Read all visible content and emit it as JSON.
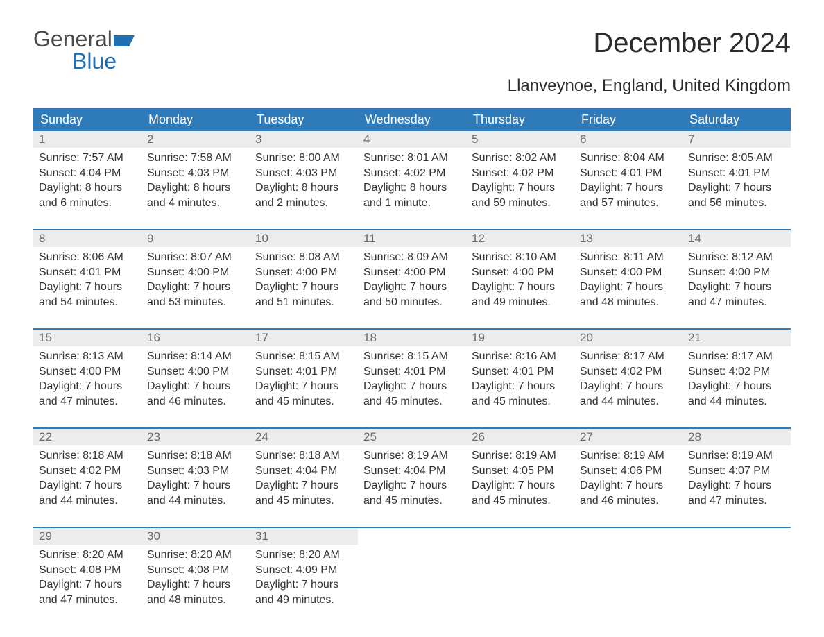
{
  "logo": {
    "text1": "General",
    "text2": "Blue",
    "flag_color": "#1f6fb2"
  },
  "title": "December 2024",
  "subtitle": "Llanveynoe, England, United Kingdom",
  "colors": {
    "header_bg": "#2f7ab8",
    "header_text": "#ffffff",
    "daynum_bg": "#ececec",
    "daynum_text": "#6a6a6a",
    "body_text": "#333333",
    "row_border": "#2f7ab8",
    "page_bg": "#ffffff"
  },
  "dayHeaders": [
    "Sunday",
    "Monday",
    "Tuesday",
    "Wednesday",
    "Thursday",
    "Friday",
    "Saturday"
  ],
  "weeks": [
    [
      {
        "n": "1",
        "sunrise": "7:57 AM",
        "sunset": "4:04 PM",
        "daylight": "8 hours and 6 minutes."
      },
      {
        "n": "2",
        "sunrise": "7:58 AM",
        "sunset": "4:03 PM",
        "daylight": "8 hours and 4 minutes."
      },
      {
        "n": "3",
        "sunrise": "8:00 AM",
        "sunset": "4:03 PM",
        "daylight": "8 hours and 2 minutes."
      },
      {
        "n": "4",
        "sunrise": "8:01 AM",
        "sunset": "4:02 PM",
        "daylight": "8 hours and 1 minute."
      },
      {
        "n": "5",
        "sunrise": "8:02 AM",
        "sunset": "4:02 PM",
        "daylight": "7 hours and 59 minutes."
      },
      {
        "n": "6",
        "sunrise": "8:04 AM",
        "sunset": "4:01 PM",
        "daylight": "7 hours and 57 minutes."
      },
      {
        "n": "7",
        "sunrise": "8:05 AM",
        "sunset": "4:01 PM",
        "daylight": "7 hours and 56 minutes."
      }
    ],
    [
      {
        "n": "8",
        "sunrise": "8:06 AM",
        "sunset": "4:01 PM",
        "daylight": "7 hours and 54 minutes."
      },
      {
        "n": "9",
        "sunrise": "8:07 AM",
        "sunset": "4:00 PM",
        "daylight": "7 hours and 53 minutes."
      },
      {
        "n": "10",
        "sunrise": "8:08 AM",
        "sunset": "4:00 PM",
        "daylight": "7 hours and 51 minutes."
      },
      {
        "n": "11",
        "sunrise": "8:09 AM",
        "sunset": "4:00 PM",
        "daylight": "7 hours and 50 minutes."
      },
      {
        "n": "12",
        "sunrise": "8:10 AM",
        "sunset": "4:00 PM",
        "daylight": "7 hours and 49 minutes."
      },
      {
        "n": "13",
        "sunrise": "8:11 AM",
        "sunset": "4:00 PM",
        "daylight": "7 hours and 48 minutes."
      },
      {
        "n": "14",
        "sunrise": "8:12 AM",
        "sunset": "4:00 PM",
        "daylight": "7 hours and 47 minutes."
      }
    ],
    [
      {
        "n": "15",
        "sunrise": "8:13 AM",
        "sunset": "4:00 PM",
        "daylight": "7 hours and 47 minutes."
      },
      {
        "n": "16",
        "sunrise": "8:14 AM",
        "sunset": "4:00 PM",
        "daylight": "7 hours and 46 minutes."
      },
      {
        "n": "17",
        "sunrise": "8:15 AM",
        "sunset": "4:01 PM",
        "daylight": "7 hours and 45 minutes."
      },
      {
        "n": "18",
        "sunrise": "8:15 AM",
        "sunset": "4:01 PM",
        "daylight": "7 hours and 45 minutes."
      },
      {
        "n": "19",
        "sunrise": "8:16 AM",
        "sunset": "4:01 PM",
        "daylight": "7 hours and 45 minutes."
      },
      {
        "n": "20",
        "sunrise": "8:17 AM",
        "sunset": "4:02 PM",
        "daylight": "7 hours and 44 minutes."
      },
      {
        "n": "21",
        "sunrise": "8:17 AM",
        "sunset": "4:02 PM",
        "daylight": "7 hours and 44 minutes."
      }
    ],
    [
      {
        "n": "22",
        "sunrise": "8:18 AM",
        "sunset": "4:02 PM",
        "daylight": "7 hours and 44 minutes."
      },
      {
        "n": "23",
        "sunrise": "8:18 AM",
        "sunset": "4:03 PM",
        "daylight": "7 hours and 44 minutes."
      },
      {
        "n": "24",
        "sunrise": "8:18 AM",
        "sunset": "4:04 PM",
        "daylight": "7 hours and 45 minutes."
      },
      {
        "n": "25",
        "sunrise": "8:19 AM",
        "sunset": "4:04 PM",
        "daylight": "7 hours and 45 minutes."
      },
      {
        "n": "26",
        "sunrise": "8:19 AM",
        "sunset": "4:05 PM",
        "daylight": "7 hours and 45 minutes."
      },
      {
        "n": "27",
        "sunrise": "8:19 AM",
        "sunset": "4:06 PM",
        "daylight": "7 hours and 46 minutes."
      },
      {
        "n": "28",
        "sunrise": "8:19 AM",
        "sunset": "4:07 PM",
        "daylight": "7 hours and 47 minutes."
      }
    ],
    [
      {
        "n": "29",
        "sunrise": "8:20 AM",
        "sunset": "4:08 PM",
        "daylight": "7 hours and 47 minutes."
      },
      {
        "n": "30",
        "sunrise": "8:20 AM",
        "sunset": "4:08 PM",
        "daylight": "7 hours and 48 minutes."
      },
      {
        "n": "31",
        "sunrise": "8:20 AM",
        "sunset": "4:09 PM",
        "daylight": "7 hours and 49 minutes."
      },
      null,
      null,
      null,
      null
    ]
  ],
  "labels": {
    "sunrise": "Sunrise: ",
    "sunset": "Sunset: ",
    "daylight": "Daylight: "
  }
}
